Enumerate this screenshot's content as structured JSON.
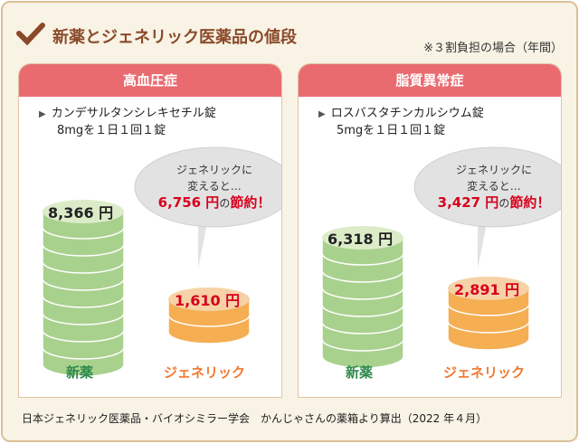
{
  "title": "新薬とジェネリック医薬品の値段",
  "note": "※３割負担の場合（年間）",
  "panels": [
    {
      "header": "高血圧症",
      "drug_line1": "カンデサルタンシレキセチル錠",
      "drug_line2": "8mgを１日１回１錠",
      "brand_price": "8,366 円",
      "generic_price": "1,610 円",
      "bubble_line1": "ジェネリックに",
      "bubble_line2": "変えると…",
      "saving": "6,756 円",
      "saving_mid": "の",
      "saving_end": "節約！",
      "brand_label": "新薬",
      "generic_label": "ジェネリック"
    },
    {
      "header": "脂質異常症",
      "drug_line1": "ロスバスタチンカルシウム錠",
      "drug_line2": "5mgを１日１回１錠",
      "brand_price": "6,318 円",
      "generic_price": "2,891 円",
      "bubble_line1": "ジェネリックに",
      "bubble_line2": "変えると…",
      "saving": "3,427 円",
      "saving_mid": "の",
      "saving_end": "節約！",
      "brand_label": "新薬",
      "generic_label": "ジェネリック"
    }
  ],
  "footer": "日本ジェネリック医薬品・バイオシミラー学会　かんじゃさんの薬箱より算出（2022 年４月）",
  "colors": {
    "header": "#e96b70",
    "brand": "#a9d18e",
    "generic": "#f5ae52",
    "title": "#8a4a2a"
  }
}
